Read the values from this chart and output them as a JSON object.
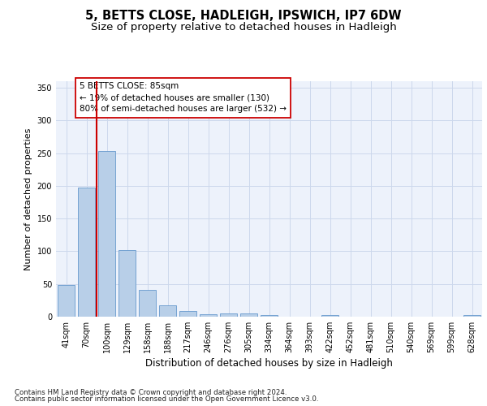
{
  "title": "5, BETTS CLOSE, HADLEIGH, IPSWICH, IP7 6DW",
  "subtitle": "Size of property relative to detached houses in Hadleigh",
  "xlabel": "Distribution of detached houses by size in Hadleigh",
  "ylabel": "Number of detached properties",
  "categories": [
    "41sqm",
    "70sqm",
    "100sqm",
    "129sqm",
    "158sqm",
    "188sqm",
    "217sqm",
    "246sqm",
    "276sqm",
    "305sqm",
    "334sqm",
    "364sqm",
    "393sqm",
    "422sqm",
    "452sqm",
    "481sqm",
    "510sqm",
    "540sqm",
    "569sqm",
    "599sqm",
    "628sqm"
  ],
  "values": [
    48,
    197,
    253,
    102,
    41,
    17,
    9,
    4,
    5,
    5,
    3,
    0,
    0,
    3,
    0,
    0,
    0,
    0,
    0,
    0,
    3
  ],
  "bar_color": "#b8cfe8",
  "bar_edge_color": "#6699cc",
  "grid_color": "#ccd8ec",
  "background_color": "#edf2fb",
  "vline_color": "#cc0000",
  "vline_position": 1.5,
  "annotation_text": "5 BETTS CLOSE: 85sqm\n← 19% of detached houses are smaller (130)\n80% of semi-detached houses are larger (532) →",
  "annotation_box_facecolor": "#ffffff",
  "annotation_box_edgecolor": "#cc0000",
  "ylim": [
    0,
    360
  ],
  "yticks": [
    0,
    50,
    100,
    150,
    200,
    250,
    300,
    350
  ],
  "footnote_line1": "Contains HM Land Registry data © Crown copyright and database right 2024.",
  "footnote_line2": "Contains public sector information licensed under the Open Government Licence v3.0.",
  "title_fontsize": 10.5,
  "subtitle_fontsize": 9.5,
  "xlabel_fontsize": 8.5,
  "ylabel_fontsize": 8,
  "tick_fontsize": 7,
  "annot_fontsize": 7.5,
  "footnote_fontsize": 6.2
}
